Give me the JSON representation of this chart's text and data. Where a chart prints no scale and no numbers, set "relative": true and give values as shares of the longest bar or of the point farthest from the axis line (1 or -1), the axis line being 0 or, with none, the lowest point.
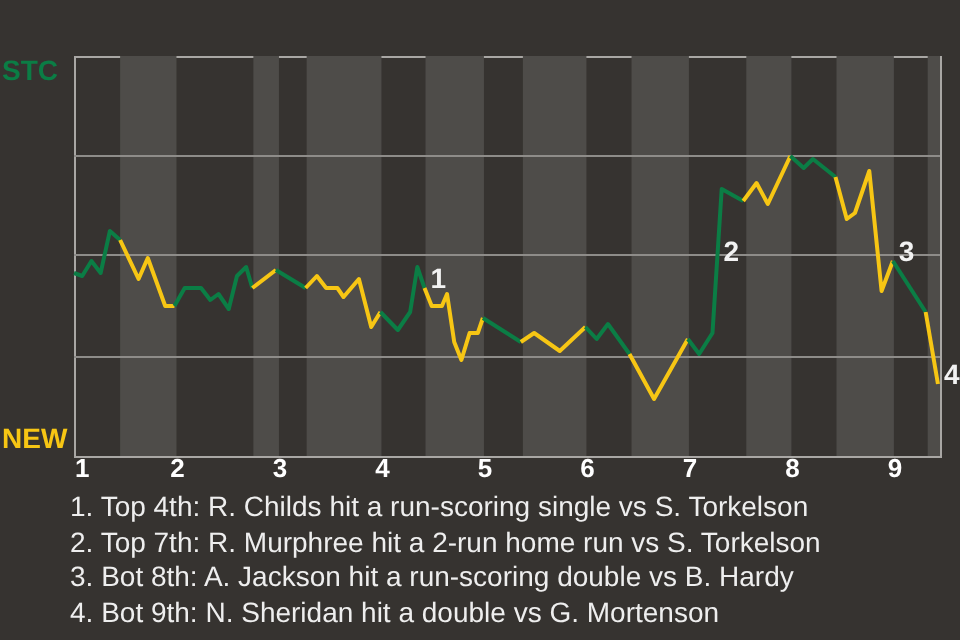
{
  "chart_data": {
    "type": "line",
    "relative": true,
    "ref_lines": [
      {
        "axis": "y",
        "value": 0.33,
        "color": "#8e8c89"
      },
      {
        "axis": "y",
        "value": 0.67,
        "color": "#8e8c89"
      },
      {
        "axis": "y",
        "value": 1,
        "color": "#8e8c89"
      }
    ],
    "xlim": [
      1,
      9.45
    ],
    "xticks": [
      1,
      2,
      3,
      4,
      5,
      6,
      7,
      8,
      9
    ],
    "bands": [
      {
        "axis": "x",
        "from": 1.45,
        "to": 2,
        "color": "#4e4c49"
      },
      {
        "axis": "x",
        "from": 2.75,
        "to": 3,
        "color": "#4e4c49"
      },
      {
        "axis": "x",
        "from": 3.27,
        "to": 4,
        "color": "#4e4c49"
      },
      {
        "axis": "x",
        "from": 4.43,
        "to": 5,
        "color": "#4e4c49"
      },
      {
        "axis": "x",
        "from": 5.38,
        "to": 6,
        "color": "#4e4c49"
      },
      {
        "axis": "x",
        "from": 6.44,
        "to": 7,
        "color": "#4e4c49"
      },
      {
        "axis": "x",
        "from": 7.56,
        "to": 8,
        "color": "#4e4c49"
      },
      {
        "axis": "x",
        "from": 8.44,
        "to": 9,
        "color": "#4e4c49"
      },
      {
        "axis": "x",
        "from": 9.33,
        "to": 9.45,
        "color": "#4e4c49"
      }
    ],
    "series": [
      {
        "name": "STC",
        "color": "#0b7d45",
        "x": [
          1,
          1.08,
          1.17,
          1.26,
          1.35,
          1.45
        ],
        "values": [
          0.61,
          0.6,
          0.65,
          0.61,
          0.75,
          0.72
        ]
      },
      {
        "name": "NEW",
        "color": "#f7c614",
        "x": [
          1.45,
          1.63,
          1.72,
          1.89,
          1.98
        ],
        "values": [
          0.72,
          0.59,
          0.66,
          0.5,
          0.5
        ]
      },
      {
        "color": "#0b7d45",
        "x": [
          1.98,
          2.08,
          2.24,
          2.33,
          2.41,
          2.51,
          2.59,
          2.68,
          2.74
        ],
        "values": [
          0.5,
          0.56,
          0.56,
          0.52,
          0.54,
          0.49,
          0.6,
          0.63,
          0.56
        ]
      },
      {
        "color": "#f7c614",
        "x": [
          2.74,
          2.97
        ],
        "values": [
          0.56,
          0.62
        ]
      },
      {
        "color": "#0b7d45",
        "x": [
          2.97,
          3.26
        ],
        "values": [
          0.62,
          0.56
        ]
      },
      {
        "color": "#f7c614",
        "x": [
          3.26,
          3.37,
          3.46,
          3.57,
          3.63,
          3.78,
          3.9,
          3.99
        ],
        "values": [
          0.56,
          0.6,
          0.56,
          0.56,
          0.53,
          0.59,
          0.43,
          0.48
        ]
      },
      {
        "color": "#0b7d45",
        "x": [
          3.99,
          4.16,
          4.28,
          4.35,
          4.42
        ],
        "values": [
          0.48,
          0.42,
          0.48,
          0.63,
          0.56
        ]
      },
      {
        "color": "#f7c614",
        "x": [
          4.42,
          4.49,
          4.59,
          4.64,
          4.71,
          4.78,
          4.86,
          4.94,
          4.99
        ],
        "values": [
          0.56,
          0.5,
          0.5,
          0.54,
          0.38,
          0.32,
          0.41,
          0.41,
          0.46
        ]
      },
      {
        "color": "#0b7d45",
        "x": [
          4.99,
          5.36
        ],
        "values": [
          0.46,
          0.38
        ]
      },
      {
        "color": "#f7c614",
        "x": [
          5.36,
          5.49,
          5.74,
          5.99
        ],
        "values": [
          0.38,
          0.41,
          0.35,
          0.43
        ]
      },
      {
        "color": "#0b7d45",
        "x": [
          5.99,
          6.1,
          6.21,
          6.42
        ],
        "values": [
          0.43,
          0.39,
          0.44,
          0.34
        ]
      },
      {
        "color": "#f7c614",
        "x": [
          6.42,
          6.66,
          6.99
        ],
        "values": [
          0.34,
          0.19,
          0.39
        ]
      },
      {
        "color": "#0b7d45",
        "x": [
          6.99,
          7.1,
          7.23,
          7.32,
          7.53
        ],
        "values": [
          0.39,
          0.34,
          0.41,
          0.89,
          0.85
        ]
      },
      {
        "color": "#f7c614",
        "x": [
          7.53,
          7.66,
          7.77,
          7.99
        ],
        "values": [
          0.85,
          0.91,
          0.84,
          1
        ]
      },
      {
        "color": "#0b7d45",
        "x": [
          7.99,
          8.12,
          8.21,
          8.43
        ],
        "values": [
          1,
          0.96,
          0.99,
          0.93
        ]
      },
      {
        "color": "#f7c614",
        "x": [
          8.43,
          8.54,
          8.62,
          8.76,
          8.88,
          8.99
        ],
        "values": [
          0.93,
          0.79,
          0.81,
          0.95,
          0.55,
          0.65
        ]
      },
      {
        "color": "#0b7d45",
        "x": [
          8.99,
          9.31
        ],
        "values": [
          0.65,
          0.48
        ]
      },
      {
        "color": "#f7c614",
        "x": [
          9.31,
          9.43
        ],
        "values": [
          0.48,
          0.24
        ]
      }
    ],
    "annotations": [
      {
        "text": "1",
        "x": 4.42,
        "y": 0.56
      },
      {
        "text": "2",
        "x": 7.28,
        "y": 0.65
      },
      {
        "text": "3",
        "x": 8.99,
        "y": 0.65
      },
      {
        "text": "4",
        "x": 9.43,
        "y": 0.24
      },
      "1. Top 4th: R. Childs hit a run-scoring single vs S. Torkelson",
      "2. Top 7th: R. Murphree hit a 2-run home run vs S. Torkelson",
      "3. Bot 8th: A. Jackson hit a run-scoring double vs B. Hardy",
      "4. Bot 9th: N. Sheridan hit a double vs G. Mortenson"
    ]
  }
}
